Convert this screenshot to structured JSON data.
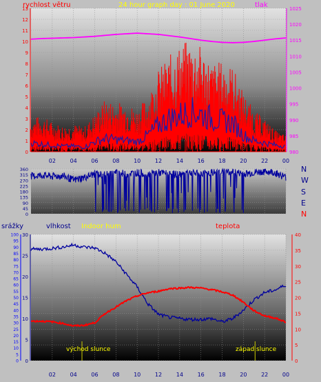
{
  "colors": {
    "wind": "#ff0000",
    "gust": "#1c1ca8",
    "pressure": "#ff00ff",
    "direction": "#00009e",
    "humidity": "#00009e",
    "temperature": "#ff0000",
    "rain": "#0000ff",
    "title": "#ffff00",
    "axis_left": "#ff0000",
    "axis_right": "#ff00ff",
    "axis_rain": "#0000ff"
  },
  "x_ticks": [
    "02",
    "04",
    "06",
    "08",
    "10",
    "12",
    "14",
    "16",
    "18",
    "20",
    "22",
    "00"
  ],
  "chart_data": [
    {
      "type": "line",
      "title": "24 hour graph day : 01 June 2020",
      "ylabel": "rychlost větru",
      "y2label": "tlak",
      "ylim": [
        0,
        13
      ],
      "y2lim": [
        980,
        1025
      ],
      "yticks": [
        "0",
        "1",
        "2",
        "3",
        "4",
        "5",
        "6",
        "7",
        "8",
        "9",
        "10",
        "11",
        "12",
        "13"
      ],
      "y2ticks": [
        "980",
        "985",
        "990",
        "995",
        "1000",
        "1005",
        "1010",
        "1015",
        "1020",
        "1025"
      ],
      "series": [
        {
          "key": "wind",
          "x": [
            0,
            1,
            2,
            3,
            4,
            5,
            6,
            7,
            8,
            9,
            10,
            11,
            12,
            13,
            14,
            15,
            16,
            17,
            18,
            19,
            20,
            21,
            22,
            23,
            24
          ],
          "y": [
            2,
            2.2,
            1.8,
            1.6,
            1.7,
            1.5,
            2.3,
            3.2,
            3,
            3,
            2.6,
            3.4,
            5,
            5.8,
            6.5,
            6.8,
            6.4,
            5.4,
            5.5,
            5.2,
            3.6,
            2.5,
            2,
            1.3,
            1
          ]
        },
        {
          "key": "gust",
          "x": [
            0,
            1,
            2,
            3,
            4,
            5,
            6,
            7,
            8,
            9,
            10,
            11,
            12,
            13,
            14,
            15,
            16,
            17,
            18,
            19,
            20,
            21,
            22,
            23,
            24
          ],
          "y": [
            0.8,
            0.7,
            0.6,
            0.5,
            0.5,
            0.4,
            0.9,
            1.2,
            1.1,
            1,
            0.9,
            1.5,
            2.4,
            3,
            3.3,
            3.6,
            3.4,
            3,
            2.8,
            2.6,
            1.5,
            1,
            0.8,
            0.6,
            0.5
          ]
        },
        {
          "key": "pressure",
          "x": [
            0,
            1,
            2,
            3,
            4,
            5,
            6,
            7,
            8,
            9,
            10,
            11,
            12,
            13,
            14,
            15,
            16,
            17,
            18,
            19,
            20,
            21,
            22,
            23,
            24
          ],
          "y": [
            1015.3,
            1015.5,
            1015.6,
            1015.7,
            1015.8,
            1016.0,
            1016.2,
            1016.5,
            1016.8,
            1017.0,
            1017.2,
            1017.0,
            1016.8,
            1016.4,
            1016.0,
            1015.5,
            1015.0,
            1014.6,
            1014.3,
            1014.2,
            1014.3,
            1014.6,
            1015.0,
            1015.4,
            1015.7
          ]
        }
      ]
    },
    {
      "type": "line",
      "ylim": [
        0,
        360
      ],
      "yticks": [
        "0",
        "45",
        "90",
        "135",
        "180",
        "225",
        "270",
        "315",
        "360"
      ],
      "direction_labels": [
        "N",
        "W",
        "S",
        "E",
        "N"
      ],
      "series": [
        {
          "key": "direction",
          "x": [
            0,
            1,
            2,
            3,
            4,
            5,
            6,
            7,
            8,
            9,
            10,
            11,
            12,
            13,
            14,
            15,
            16,
            17,
            18,
            19,
            20,
            21,
            22,
            23,
            24
          ],
          "y": [
            300,
            310,
            300,
            305,
            270,
            290,
            320,
            310,
            330,
            320,
            330,
            320,
            330,
            320,
            315,
            330,
            320,
            330,
            340,
            335,
            320,
            330,
            340,
            330,
            290
          ]
        }
      ]
    },
    {
      "type": "line",
      "ylabel": "vlhkost",
      "legend": [
        "srážky",
        "vlhkost",
        "Indoor hum",
        "teplota"
      ],
      "ylim": [
        0,
        30
      ],
      "y2lim": [
        0,
        40
      ],
      "yrainlim": [
        0,
        100
      ],
      "yticks": [
        "0",
        "5",
        "10",
        "15",
        "20",
        "25",
        "30"
      ],
      "y2ticks": [
        "0",
        "5",
        "10",
        "15",
        "20",
        "25",
        "30",
        "35",
        "40"
      ],
      "yrainticks": [
        "0",
        "5",
        "10",
        "15",
        "20",
        "25",
        "30",
        "35",
        "40",
        "45",
        "50",
        "55",
        "60",
        "65",
        "70",
        "75",
        "80",
        "85",
        "90",
        "95",
        "100"
      ],
      "annotations": [
        {
          "label": "východ slunce",
          "x": 4.8
        },
        {
          "label": "západ slunce",
          "x": 21.1
        }
      ],
      "series": [
        {
          "key": "humidity",
          "x": [
            0,
            1,
            2,
            3,
            4,
            5,
            6,
            7,
            8,
            9,
            10,
            11,
            12,
            13,
            14,
            15,
            16,
            17,
            18,
            19,
            20,
            21,
            22,
            23,
            24
          ],
          "y": [
            26.5,
            26.5,
            26.7,
            27,
            27.5,
            27,
            26.8,
            25.5,
            23.5,
            20.5,
            17.5,
            13.5,
            11,
            10.3,
            10,
            9.8,
            9.8,
            10,
            9.2,
            10,
            12,
            14.5,
            16.2,
            16.8,
            18
          ]
        },
        {
          "key": "temperature",
          "x": [
            0,
            1,
            2,
            3,
            4,
            5,
            6,
            7,
            8,
            9,
            10,
            11,
            12,
            13,
            14,
            15,
            16,
            17,
            18,
            19,
            20,
            21,
            22,
            23,
            24
          ],
          "y": [
            12.5,
            12.5,
            12.3,
            11.8,
            11,
            11.2,
            12,
            15,
            17,
            19,
            20.5,
            21.5,
            22,
            22.8,
            23,
            23.2,
            23,
            22.5,
            21.8,
            20.8,
            18.5,
            15.8,
            14.2,
            13.5,
            12.2
          ]
        }
      ]
    }
  ]
}
